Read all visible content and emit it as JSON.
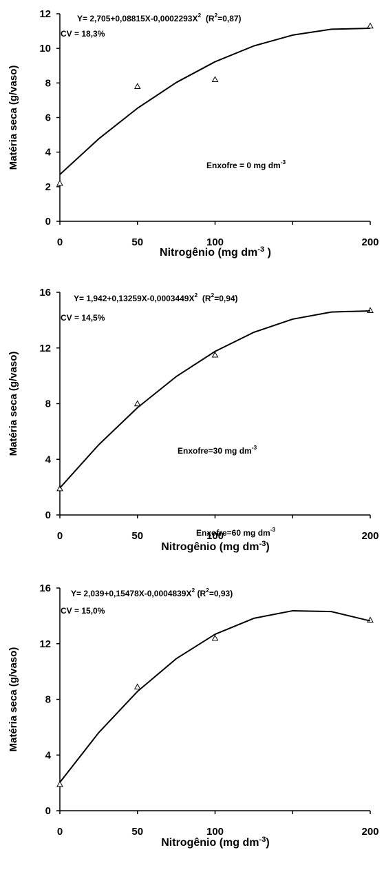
{
  "chart_data": [
    {
      "type": "scatter",
      "ylabel": "Matéria seca (g/vaso)",
      "xlabel": [
        "Nitrogênio (mg dm",
        "-3",
        " )"
      ],
      "equation": [
        "Y= 2,705+0,08815X-0,0002293X",
        "2",
        "  (R",
        "2",
        "=0,87)"
      ],
      "cv": "CV = 18,3%",
      "annotation": [
        "Enxofre = 0 mg dm",
        "-3"
      ],
      "xlim": [
        0,
        200
      ],
      "xticks": [
        0,
        50,
        100,
        {
          "value": 150,
          "label": null
        },
        200
      ],
      "ylim": [
        0,
        12
      ],
      "yticks": [
        0,
        2,
        4,
        6,
        8,
        10,
        12
      ],
      "series": [
        {
          "type": "scatter",
          "marker": "triangle",
          "color": "#000000",
          "x": [
            0,
            50,
            100,
            200
          ],
          "values": [
            2.2,
            7.8,
            8.2,
            11.3
          ]
        },
        {
          "type": "line",
          "color": "#000000",
          "x": [
            0,
            25,
            50,
            75,
            100,
            125,
            150,
            175,
            200
          ],
          "values": [
            2.705,
            4.766,
            6.539,
            8.026,
            9.227,
            10.141,
            10.768,
            11.109,
            11.163
          ]
        }
      ]
    },
    {
      "type": "scatter",
      "ylabel": "Matéria seca (g/vaso)",
      "xlabel": [
        "Nitrogênio (mg dm",
        "-3",
        ")"
      ],
      "equation": [
        "Y= 1,942+0,13259X-0,0003449X",
        "2",
        "  (R",
        "2",
        "=0,94)"
      ],
      "cv": "CV = 14,5%",
      "annotation": [
        "Enxofre=30 mg dm",
        "-3"
      ],
      "xlim": [
        0,
        200
      ],
      "xticks": [
        0,
        50,
        100,
        {
          "value": 150,
          "label": null
        },
        200
      ],
      "ylim": [
        0,
        16
      ],
      "yticks": [
        0,
        4,
        8,
        12,
        16
      ],
      "series": [
        {
          "type": "scatter",
          "marker": "triangle",
          "color": "#000000",
          "x": [
            0,
            50,
            100,
            200
          ],
          "values": [
            1.9,
            8.0,
            11.5,
            14.7
          ]
        },
        {
          "type": "line",
          "color": "#000000",
          "x": [
            0,
            25,
            50,
            75,
            100,
            125,
            150,
            175,
            200
          ],
          "values": [
            1.942,
            5.041,
            7.71,
            9.946,
            11.752,
            13.127,
            14.071,
            14.583,
            14.664
          ]
        }
      ]
    },
    {
      "type": "scatter",
      "ylabel": "Matéria seca (g/vaso)",
      "xlabel": [
        "Nitrogênio (mg dm",
        "-3",
        ")"
      ],
      "equation": [
        "Y= 2,039+0,15478X-0,0004839X",
        "2",
        " (R",
        "2",
        "=0,93)"
      ],
      "cv": "CV = 15,0%",
      "annotation": [
        "Enxofre=60 mg dm",
        "-3"
      ],
      "xlim": [
        0,
        200
      ],
      "xticks": [
        0,
        50,
        100,
        {
          "value": 150,
          "label": null
        },
        200
      ],
      "ylim": [
        0,
        16
      ],
      "yticks": [
        0,
        4,
        8,
        12,
        16
      ],
      "series": [
        {
          "type": "scatter",
          "marker": "triangle",
          "color": "#000000",
          "x": [
            0,
            50,
            100,
            200
          ],
          "values": [
            1.9,
            8.9,
            12.4,
            13.7
          ]
        },
        {
          "type": "line",
          "color": "#000000",
          "x": [
            0,
            25,
            50,
            75,
            100,
            125,
            150,
            175,
            200
          ],
          "values": [
            2.039,
            5.607,
            8.568,
            10.926,
            12.678,
            13.826,
            14.368,
            14.307,
            13.639
          ]
        }
      ]
    }
  ]
}
